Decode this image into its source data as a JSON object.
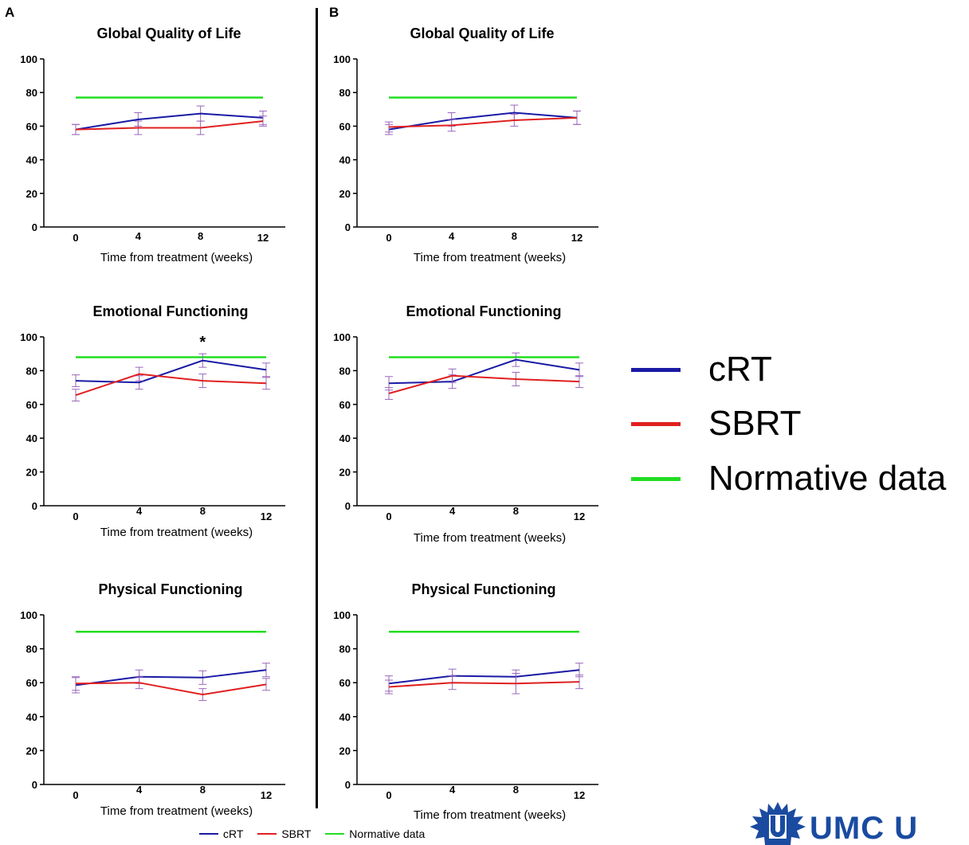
{
  "panels": {
    "A": "A",
    "B": "B"
  },
  "colors": {
    "cRT": "#1a1aa6",
    "SBRT": "#e02020",
    "normative": "#22dd22",
    "errorbar": "#9966bb",
    "logo": "#1a4ba0"
  },
  "legend": {
    "items": [
      {
        "label": "cRT",
        "color": "#1a1aa6"
      },
      {
        "label": "SBRT",
        "color": "#e02020"
      },
      {
        "label": "Normative data",
        "color": "#22dd22"
      }
    ]
  },
  "logo": {
    "text": "UMC U",
    "icon": "umc-utrecht-star-icon"
  },
  "chart_data": [
    {
      "panel": "A",
      "type": "line",
      "title": "Global Quality of Life",
      "xlabel": "Time from treatment (weeks)",
      "ylabel": "",
      "x": [
        0,
        4,
        8,
        12
      ],
      "ylim": [
        0,
        100
      ],
      "yticks": [
        0,
        20,
        40,
        60,
        80,
        100
      ],
      "normative": 77,
      "series": [
        {
          "name": "cRT",
          "values": [
            58,
            64,
            67.5,
            65
          ],
          "errors": [
            3,
            4,
            4.5,
            4
          ]
        },
        {
          "name": "SBRT",
          "values": [
            58,
            59,
            59,
            63
          ],
          "errors": [
            3,
            4,
            4,
            3
          ]
        }
      ],
      "annotations": []
    },
    {
      "panel": "B",
      "type": "line",
      "title": "Global Quality of Life",
      "xlabel": "Time from treatment (weeks)",
      "ylabel": "",
      "x": [
        0,
        4,
        8,
        12
      ],
      "ylim": [
        0,
        100
      ],
      "yticks": [
        0,
        20,
        40,
        60,
        80,
        100
      ],
      "normative": 77,
      "series": [
        {
          "name": "cRT",
          "values": [
            58,
            64,
            68,
            65
          ],
          "errors": [
            3,
            4,
            4.5,
            4
          ]
        },
        {
          "name": "SBRT",
          "values": [
            59.5,
            60.5,
            63.5,
            65
          ],
          "errors": [
            3,
            3.5,
            3.5,
            4
          ]
        }
      ],
      "annotations": []
    },
    {
      "panel": "A",
      "type": "line",
      "title": "Emotional Functioning",
      "xlabel": "Time from treatment (weeks)",
      "ylabel": "",
      "x": [
        0,
        4,
        8,
        12
      ],
      "ylim": [
        0,
        100
      ],
      "yticks": [
        0,
        20,
        40,
        60,
        80,
        100
      ],
      "normative": 88,
      "series": [
        {
          "name": "cRT",
          "values": [
            74,
            73,
            86,
            80.5
          ],
          "errors": [
            3.5,
            4,
            4,
            4
          ]
        },
        {
          "name": "SBRT",
          "values": [
            65.5,
            78,
            74,
            72.5
          ],
          "errors": [
            3.5,
            4,
            4,
            3.5
          ]
        }
      ],
      "annotations": [
        {
          "x": 8,
          "text": "*"
        }
      ]
    },
    {
      "panel": "B",
      "type": "line",
      "title": "Emotional Functioning",
      "xlabel": "Time from treatment (weeks)",
      "ylabel": "",
      "x": [
        0,
        4,
        8,
        12
      ],
      "ylim": [
        0,
        100
      ],
      "yticks": [
        0,
        20,
        40,
        60,
        80,
        100
      ],
      "normative": 88,
      "series": [
        {
          "name": "cRT",
          "values": [
            72.5,
            73.5,
            86.5,
            80.5
          ],
          "errors": [
            4,
            4,
            4,
            4
          ]
        },
        {
          "name": "SBRT",
          "values": [
            66.5,
            77,
            75,
            73.5
          ],
          "errors": [
            3.5,
            4,
            4,
            3.5
          ]
        }
      ],
      "annotations": []
    },
    {
      "panel": "A",
      "type": "line",
      "title": "Physical Functioning",
      "xlabel": "Time from treatment (weeks)",
      "ylabel": "",
      "x": [
        0,
        4,
        8,
        12
      ],
      "ylim": [
        0,
        100
      ],
      "yticks": [
        0,
        20,
        40,
        60,
        80,
        100
      ],
      "normative": 90,
      "series": [
        {
          "name": "cRT",
          "values": [
            58.5,
            63.5,
            63,
            67.5
          ],
          "errors": [
            4.5,
            4,
            4,
            4
          ]
        },
        {
          "name": "SBRT",
          "values": [
            59.5,
            60,
            53,
            59
          ],
          "errors": [
            4,
            3.5,
            3.5,
            3.5
          ]
        }
      ],
      "annotations": []
    },
    {
      "panel": "B",
      "type": "line",
      "title": "Physical Functioning",
      "xlabel": "Time from treatment (weeks)",
      "ylabel": "",
      "x": [
        0,
        4,
        8,
        12
      ],
      "ylim": [
        0,
        100
      ],
      "yticks": [
        0,
        20,
        40,
        60,
        80,
        100
      ],
      "normative": 90,
      "series": [
        {
          "name": "cRT",
          "values": [
            59.5,
            64,
            63.5,
            67.5
          ],
          "errors": [
            4.5,
            4,
            4,
            4
          ]
        },
        {
          "name": "SBRT",
          "values": [
            57.5,
            60,
            59.5,
            60.5
          ],
          "errors": [
            4,
            4,
            6,
            4
          ]
        }
      ],
      "annotations": []
    }
  ]
}
